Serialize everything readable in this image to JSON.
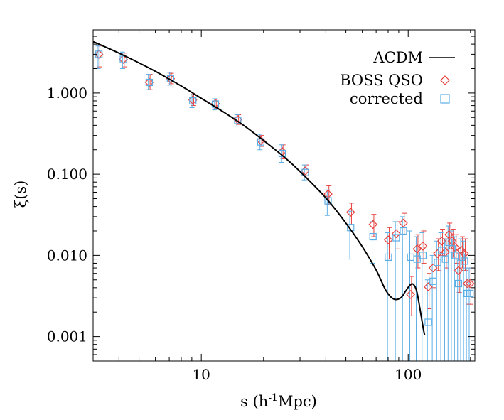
{
  "chart_data": {
    "type": "scatter",
    "title": "",
    "xlabel": "s (h⁻¹Mpc)",
    "xlabel_parts": {
      "base": "s (h",
      "sup": "-1",
      "rest": "Mpc)"
    },
    "ylabel": "ξ(s)",
    "x_scale": "log",
    "y_scale": "log",
    "xlim": [
      3.0,
      210
    ],
    "ylim": [
      0.0005,
      6.0
    ],
    "xticks": [
      10,
      100
    ],
    "xtick_labels": [
      "10",
      "100"
    ],
    "yticks": [
      0.001,
      0.01,
      0.1,
      1.0
    ],
    "ytick_labels": [
      "0.001",
      "0.010",
      "0.100",
      "1.000"
    ],
    "grid": false,
    "legend_position": "top-right",
    "series": [
      {
        "name": "ΛCDM",
        "kind": "line",
        "color": "#000000",
        "x": [
          3.0,
          4,
          5,
          6,
          8,
          10,
          13,
          16,
          20,
          25,
          30,
          40,
          50,
          60,
          70,
          78,
          85,
          92,
          97,
          102,
          106,
          110,
          114,
          118,
          120
        ],
        "y": [
          4.3,
          3.1,
          2.35,
          1.85,
          1.22,
          0.86,
          0.57,
          0.4,
          0.26,
          0.165,
          0.108,
          0.051,
          0.025,
          0.0128,
          0.0066,
          0.0037,
          0.0029,
          0.003,
          0.0036,
          0.0043,
          0.0044,
          0.0036,
          0.0022,
          0.0013,
          0.00105
        ]
      },
      {
        "name": "BOSS QSO",
        "kind": "points",
        "marker": "diamond",
        "color": "#e8423e",
        "points": [
          {
            "x": 3.2,
            "y": 3.0,
            "lo": 2.1,
            "hi": 3.8
          },
          {
            "x": 4.2,
            "y": 2.6,
            "lo": 2.1,
            "hi": 3.1
          },
          {
            "x": 5.6,
            "y": 1.35,
            "lo": 1.1,
            "hi": 1.7
          },
          {
            "x": 7.1,
            "y": 1.5,
            "lo": 1.3,
            "hi": 1.75
          },
          {
            "x": 9.1,
            "y": 0.82,
            "lo": 0.7,
            "hi": 0.96
          },
          {
            "x": 11.7,
            "y": 0.74,
            "lo": 0.65,
            "hi": 0.84
          },
          {
            "x": 15.0,
            "y": 0.47,
            "lo": 0.41,
            "hi": 0.54
          },
          {
            "x": 19.4,
            "y": 0.26,
            "lo": 0.22,
            "hi": 0.3
          },
          {
            "x": 24.6,
            "y": 0.19,
            "lo": 0.155,
            "hi": 0.23
          },
          {
            "x": 31.8,
            "y": 0.11,
            "lo": 0.09,
            "hi": 0.13
          },
          {
            "x": 41.0,
            "y": 0.057,
            "lo": 0.042,
            "hi": 0.072
          },
          {
            "x": 52.7,
            "y": 0.034,
            "lo": 0.024,
            "hi": 0.044
          },
          {
            "x": 67.6,
            "y": 0.024,
            "lo": 0.017,
            "hi": 0.032
          },
          {
            "x": 80.2,
            "y": 0.0155,
            "lo": 0.009,
            "hi": 0.022
          },
          {
            "x": 87.5,
            "y": 0.0185,
            "lo": 0.012,
            "hi": 0.026
          },
          {
            "x": 94.8,
            "y": 0.025,
            "lo": 0.018,
            "hi": 0.033
          },
          {
            "x": 102.8,
            "y": 0.0033,
            "lo": 0.0018,
            "hi": 0.0055
          },
          {
            "x": 110.4,
            "y": 0.012,
            "lo": 0.007,
            "hi": 0.018
          },
          {
            "x": 117.8,
            "y": 0.013,
            "lo": 0.008,
            "hi": 0.02
          },
          {
            "x": 125.0,
            "y": 0.0041,
            "lo": 0.0022,
            "hi": 0.006
          },
          {
            "x": 132.0,
            "y": 0.007,
            "lo": 0.004,
            "hi": 0.011
          },
          {
            "x": 138.6,
            "y": 0.0105,
            "lo": 0.0065,
            "hi": 0.016
          },
          {
            "x": 145.1,
            "y": 0.015,
            "lo": 0.01,
            "hi": 0.021
          },
          {
            "x": 151.4,
            "y": 0.011,
            "lo": 0.007,
            "hi": 0.016
          },
          {
            "x": 157.3,
            "y": 0.018,
            "lo": 0.012,
            "hi": 0.025
          },
          {
            "x": 163.2,
            "y": 0.015,
            "lo": 0.0095,
            "hi": 0.021
          },
          {
            "x": 169.0,
            "y": 0.0125,
            "lo": 0.008,
            "hi": 0.018
          },
          {
            "x": 175.0,
            "y": 0.0065,
            "lo": 0.0035,
            "hi": 0.0105
          },
          {
            "x": 181.0,
            "y": 0.0115,
            "lo": 0.007,
            "hi": 0.017
          },
          {
            "x": 187.0,
            "y": 0.0105,
            "lo": 0.0065,
            "hi": 0.016
          },
          {
            "x": 193.0,
            "y": 0.0045,
            "lo": 0.0025,
            "hi": 0.007
          },
          {
            "x": 199.0,
            "y": 0.0045,
            "lo": 0.0025,
            "hi": 0.007
          }
        ]
      },
      {
        "name": "corrected",
        "kind": "points",
        "marker": "square",
        "color": "#5aaee6",
        "points": [
          {
            "x": 3.2,
            "y": 3.0,
            "lo": 2.0,
            "hi": 3.8
          },
          {
            "x": 4.2,
            "y": 2.6,
            "lo": 2.0,
            "hi": 3.2
          },
          {
            "x": 5.6,
            "y": 1.35,
            "lo": 1.1,
            "hi": 1.7
          },
          {
            "x": 7.1,
            "y": 1.5,
            "lo": 1.25,
            "hi": 1.8
          },
          {
            "x": 9.1,
            "y": 0.8,
            "lo": 0.66,
            "hi": 0.95
          },
          {
            "x": 11.7,
            "y": 0.73,
            "lo": 0.62,
            "hi": 0.85
          },
          {
            "x": 15.0,
            "y": 0.46,
            "lo": 0.39,
            "hi": 0.54
          },
          {
            "x": 19.4,
            "y": 0.25,
            "lo": 0.2,
            "hi": 0.31
          },
          {
            "x": 24.6,
            "y": 0.18,
            "lo": 0.14,
            "hi": 0.23
          },
          {
            "x": 31.8,
            "y": 0.105,
            "lo": 0.085,
            "hi": 0.13
          },
          {
            "x": 41.0,
            "y": 0.047,
            "lo": 0.031,
            "hi": 0.064
          },
          {
            "x": 52.7,
            "y": 0.022,
            "lo": 0.009,
            "hi": 0.035
          },
          {
            "x": 67.6,
            "y": 0.017,
            "lo": 0.008,
            "hi": 0.026
          },
          {
            "x": 80.2,
            "y": 0.0095,
            "lo": 0.0005,
            "hi": 0.019
          },
          {
            "x": 87.5,
            "y": 0.0165,
            "lo": 0.0005,
            "hi": 0.026
          },
          {
            "x": 94.8,
            "y": 0.02,
            "lo": 0.0005,
            "hi": 0.03
          },
          {
            "x": 102.8,
            "y": 0.0095,
            "lo": 0.0005,
            "hi": 0.02
          },
          {
            "x": 110.4,
            "y": 0.009,
            "lo": 0.0005,
            "hi": 0.017
          },
          {
            "x": 117.8,
            "y": 0.01,
            "lo": 0.0005,
            "hi": 0.019
          },
          {
            "x": 125.0,
            "y": 0.0015,
            "lo": 0.0005,
            "hi": 0.005
          },
          {
            "x": 132.0,
            "y": 0.0048,
            "lo": 0.0005,
            "hi": 0.01
          },
          {
            "x": 138.6,
            "y": 0.0082,
            "lo": 0.0005,
            "hi": 0.015
          },
          {
            "x": 145.1,
            "y": 0.0115,
            "lo": 0.0005,
            "hi": 0.019
          },
          {
            "x": 151.4,
            "y": 0.009,
            "lo": 0.0005,
            "hi": 0.016
          },
          {
            "x": 157.3,
            "y": 0.0145,
            "lo": 0.0005,
            "hi": 0.023
          },
          {
            "x": 163.2,
            "y": 0.012,
            "lo": 0.0005,
            "hi": 0.02
          },
          {
            "x": 169.0,
            "y": 0.01,
            "lo": 0.0005,
            "hi": 0.017
          },
          {
            "x": 175.0,
            "y": 0.0045,
            "lo": 0.0005,
            "hi": 0.009
          },
          {
            "x": 181.0,
            "y": 0.0095,
            "lo": 0.0005,
            "hi": 0.016
          },
          {
            "x": 187.0,
            "y": 0.0085,
            "lo": 0.0005,
            "hi": 0.015
          },
          {
            "x": 193.0,
            "y": 0.0034,
            "lo": 0.0005,
            "hi": 0.007
          },
          {
            "x": 199.0,
            "y": 0.0034,
            "lo": 0.0005,
            "hi": 0.007
          }
        ]
      }
    ]
  }
}
